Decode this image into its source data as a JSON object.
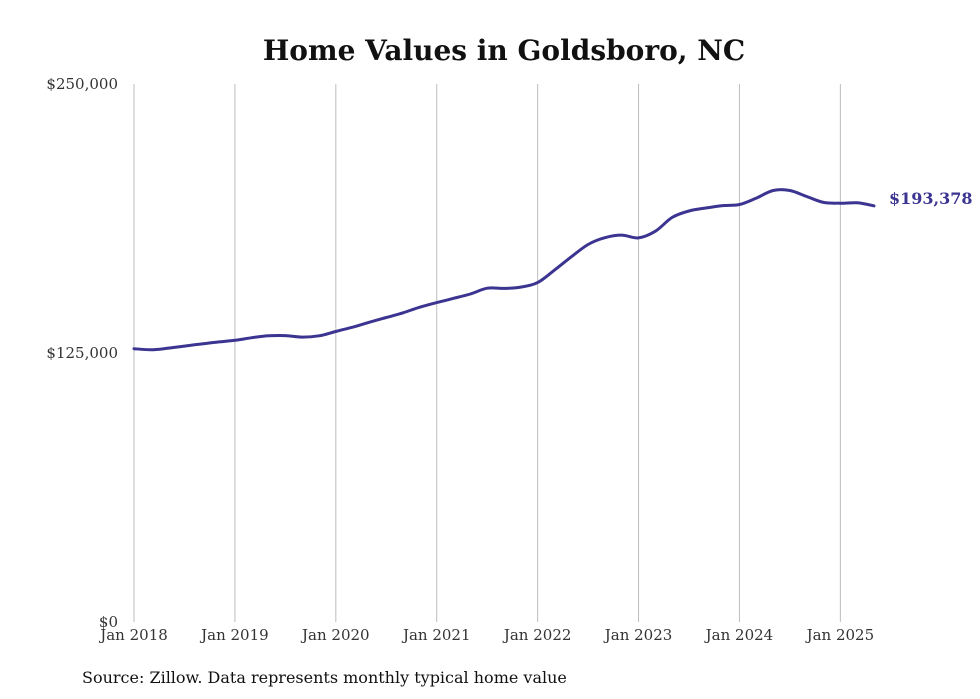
{
  "chart_data": {
    "type": "line",
    "title": "Home Values in Goldsboro, NC",
    "xlabel": "",
    "ylabel": "",
    "ylim": [
      0,
      250000
    ],
    "y_ticks": [
      {
        "value": 0,
        "label": "$0"
      },
      {
        "value": 125000,
        "label": "$125,000"
      },
      {
        "value": 250000,
        "label": "$250,000"
      }
    ],
    "x_ticks": [
      {
        "date": "2018-01",
        "label": "Jan 2018"
      },
      {
        "date": "2019-01",
        "label": "Jan 2019"
      },
      {
        "date": "2020-01",
        "label": "Jan 2020"
      },
      {
        "date": "2021-01",
        "label": "Jan 2021"
      },
      {
        "date": "2022-01",
        "label": "Jan 2022"
      },
      {
        "date": "2023-01",
        "label": "Jan 2023"
      },
      {
        "date": "2024-01",
        "label": "Jan 2024"
      },
      {
        "date": "2025-01",
        "label": "Jan 2025"
      }
    ],
    "xlim": [
      "2018-01",
      "2025-05"
    ],
    "grid": "vertical",
    "line_color": "#3b3491",
    "end_label": "$193,378",
    "series": [
      {
        "points": [
          [
            "2018-01",
            127000
          ],
          [
            "2018-03",
            126500
          ],
          [
            "2018-05",
            127200
          ],
          [
            "2018-07",
            128200
          ],
          [
            "2018-09",
            129200
          ],
          [
            "2018-11",
            130100
          ],
          [
            "2019-01",
            130900
          ],
          [
            "2019-03",
            132100
          ],
          [
            "2019-05",
            133000
          ],
          [
            "2019-07",
            133100
          ],
          [
            "2019-09",
            132400
          ],
          [
            "2019-11",
            133000
          ],
          [
            "2020-01",
            135000
          ],
          [
            "2020-03",
            137000
          ],
          [
            "2020-05",
            139300
          ],
          [
            "2020-07",
            141500
          ],
          [
            "2020-09",
            143700
          ],
          [
            "2020-11",
            146300
          ],
          [
            "2021-01",
            148400
          ],
          [
            "2021-03",
            150400
          ],
          [
            "2021-05",
            152400
          ],
          [
            "2021-07",
            155100
          ],
          [
            "2021-09",
            155000
          ],
          [
            "2021-11",
            155600
          ],
          [
            "2022-01",
            157700
          ],
          [
            "2022-03",
            163500
          ],
          [
            "2022-05",
            169700
          ],
          [
            "2022-07",
            175400
          ],
          [
            "2022-09",
            178600
          ],
          [
            "2022-11",
            179800
          ],
          [
            "2023-01",
            178500
          ],
          [
            "2023-03",
            181600
          ],
          [
            "2023-05",
            188000
          ],
          [
            "2023-07",
            191000
          ],
          [
            "2023-09",
            192400
          ],
          [
            "2023-11",
            193500
          ],
          [
            "2024-01",
            194000
          ],
          [
            "2024-03",
            197000
          ],
          [
            "2024-05",
            200500
          ],
          [
            "2024-07",
            200500
          ],
          [
            "2024-09",
            197700
          ],
          [
            "2024-11",
            195000
          ],
          [
            "2025-01",
            194600
          ],
          [
            "2025-03",
            194800
          ],
          [
            "2025-05",
            193378
          ]
        ]
      }
    ]
  },
  "source_note": "Source: Zillow. Data represents monthly typical home value"
}
